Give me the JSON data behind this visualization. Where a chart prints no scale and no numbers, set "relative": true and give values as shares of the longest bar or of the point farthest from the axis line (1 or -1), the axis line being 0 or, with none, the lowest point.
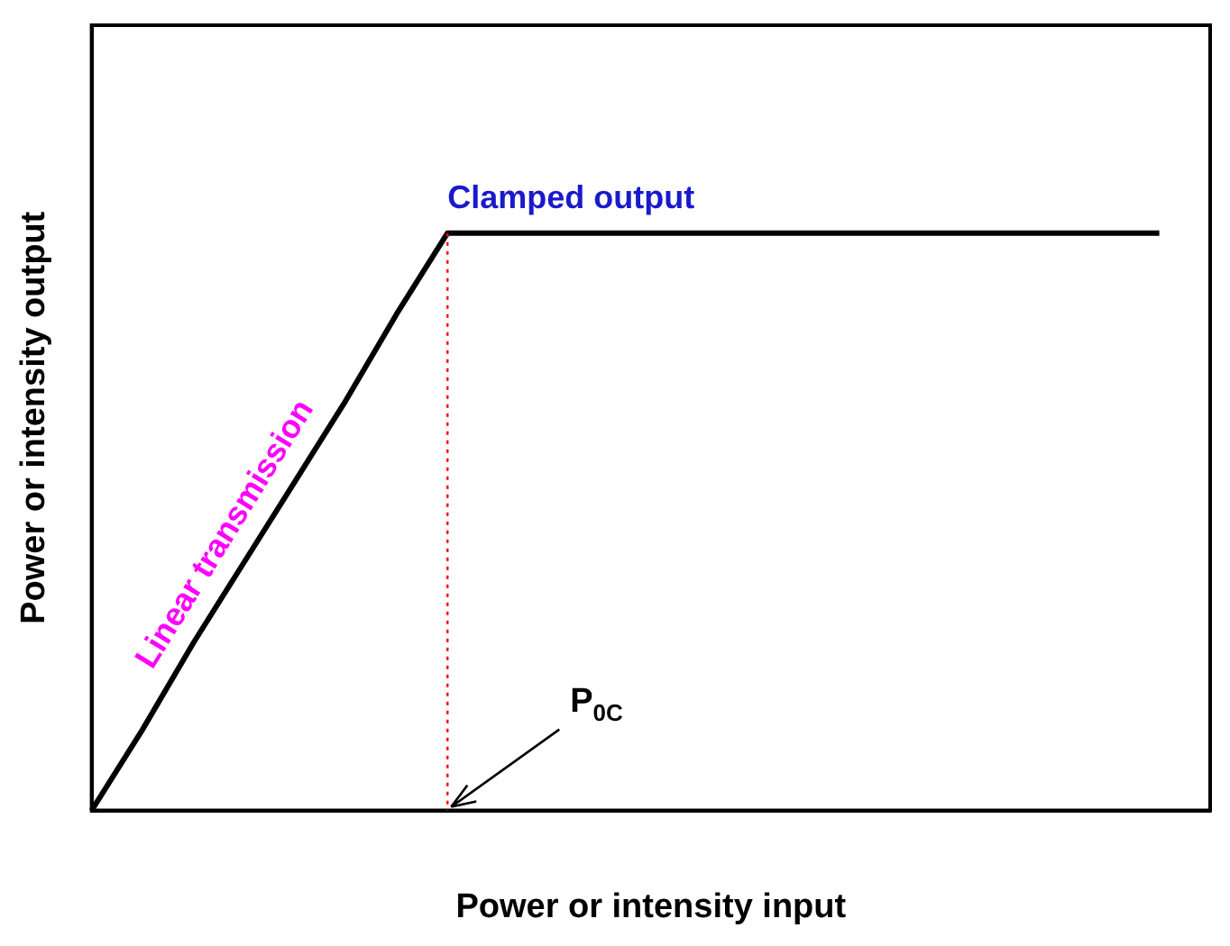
{
  "chart_data": {
    "type": "line",
    "relative": true,
    "xlabel": "Power or intensity input",
    "ylabel": "Power or intensity output",
    "categories": [
      null,
      null,
      null,
      null,
      null,
      null,
      null,
      null,
      null,
      null,
      null,
      null,
      null,
      null,
      null,
      null,
      null,
      null,
      null,
      null,
      null,
      null,
      null
    ],
    "series": [
      {
        "color": "#000000",
        "values": [
          0,
          0.14,
          0.29,
          0.43,
          0.57,
          0.71,
          0.86,
          1,
          1,
          1,
          1,
          1,
          1,
          1,
          1,
          1,
          1,
          1,
          1,
          1,
          1,
          1,
          null
        ]
      }
    ],
    "annotations": [
      "Linear transmission",
      "Clamped output",
      "P$_{0C}$"
    ],
    "grid": false,
    "legend": false,
    "marker": "none",
    "line_style": "solid"
  }
}
